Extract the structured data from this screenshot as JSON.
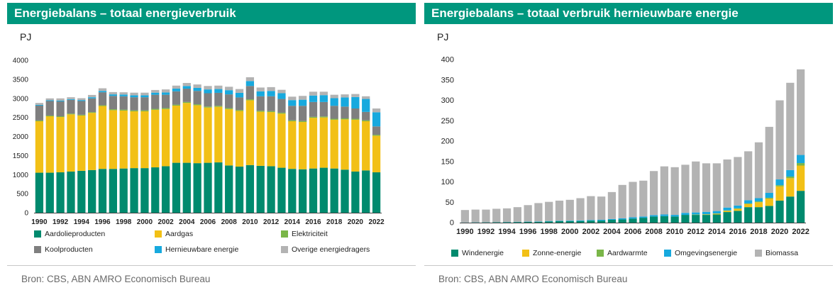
{
  "chart_data": [
    {
      "type": "bar",
      "stacked": true,
      "title": "Energiebalans – totaal energieverbruik",
      "ylabel": "PJ",
      "ylim": [
        0,
        4000
      ],
      "yticks": [
        "0",
        "500",
        "1000",
        "1500",
        "2000",
        "2500",
        "3000",
        "3500",
        "4000"
      ],
      "ytick_values": [
        0,
        500,
        1000,
        1500,
        2000,
        2500,
        3000,
        3500,
        4000
      ],
      "x": [
        1990,
        1991,
        1992,
        1993,
        1994,
        1995,
        1996,
        1997,
        1998,
        1999,
        2000,
        2001,
        2002,
        2003,
        2004,
        2005,
        2006,
        2007,
        2008,
        2009,
        2010,
        2011,
        2012,
        2013,
        2014,
        2015,
        2016,
        2017,
        2018,
        2019,
        2020,
        2021,
        2022
      ],
      "xticks": [
        "1990",
        "1992",
        "1994",
        "1996",
        "1998",
        "2000",
        "2002",
        "2004",
        "2006",
        "2008",
        "2010",
        "2012",
        "2014",
        "2016",
        "2018",
        "2020",
        "2022"
      ],
      "grid": false,
      "legend_position": "bottom",
      "series": [
        {
          "name": "Aardolieproducten",
          "color": "#008a6e",
          "values": [
            1050,
            1050,
            1060,
            1080,
            1100,
            1120,
            1150,
            1150,
            1160,
            1170,
            1170,
            1190,
            1220,
            1310,
            1310,
            1300,
            1310,
            1320,
            1240,
            1210,
            1250,
            1230,
            1220,
            1180,
            1150,
            1140,
            1160,
            1180,
            1160,
            1130,
            1080,
            1110,
            1060
          ]
        },
        {
          "name": "Aardgas",
          "color": "#f2c016",
          "values": [
            1350,
            1480,
            1450,
            1500,
            1450,
            1500,
            1650,
            1540,
            1520,
            1490,
            1490,
            1510,
            1500,
            1500,
            1570,
            1520,
            1450,
            1460,
            1480,
            1460,
            1700,
            1420,
            1420,
            1420,
            1250,
            1240,
            1330,
            1320,
            1280,
            1320,
            1360,
            1290,
            960
          ]
        },
        {
          "name": "Elektriciteit",
          "color": "#7ab648",
          "values": [
            20,
            20,
            20,
            20,
            20,
            20,
            20,
            25,
            25,
            25,
            25,
            25,
            25,
            25,
            25,
            25,
            25,
            25,
            25,
            25,
            25,
            25,
            25,
            25,
            25,
            25,
            25,
            25,
            25,
            25,
            25,
            25,
            25
          ]
        },
        {
          "name": "Koolproducten",
          "color": "#7f7f7f",
          "values": [
            390,
            380,
            390,
            360,
            360,
            360,
            340,
            350,
            350,
            345,
            345,
            370,
            350,
            350,
            350,
            350,
            350,
            340,
            360,
            330,
            350,
            380,
            390,
            360,
            380,
            400,
            390,
            380,
            340,
            310,
            270,
            220,
            220
          ]
        },
        {
          "name": "Hernieuwbare energie",
          "color": "#17a9de",
          "values": [
            20,
            20,
            20,
            20,
            25,
            30,
            35,
            40,
            45,
            50,
            50,
            55,
            60,
            70,
            70,
            80,
            100,
            100,
            110,
            120,
            130,
            130,
            140,
            150,
            150,
            160,
            170,
            180,
            200,
            240,
            300,
            340,
            370
          ]
        },
        {
          "name": "Overige energiedragers",
          "color": "#b3b3b3",
          "values": [
            50,
            50,
            60,
            50,
            50,
            60,
            70,
            60,
            60,
            70,
            70,
            70,
            80,
            80,
            80,
            90,
            90,
            90,
            90,
            100,
            100,
            100,
            100,
            90,
            90,
            100,
            100,
            90,
            90,
            80,
            80,
            70,
            100
          ]
        }
      ]
    },
    {
      "type": "bar",
      "stacked": true,
      "title": "Energiebalans – totaal verbruik hernieuwbare energie",
      "ylabel": "PJ",
      "ylim": [
        0,
        400
      ],
      "yticks": [
        "0",
        "50",
        "100",
        "150",
        "200",
        "250",
        "300",
        "350",
        "400"
      ],
      "ytick_values": [
        0,
        50,
        100,
        150,
        200,
        250,
        300,
        350,
        400
      ],
      "x": [
        1990,
        1991,
        1992,
        1993,
        1994,
        1995,
        1996,
        1997,
        1998,
        1999,
        2000,
        2001,
        2002,
        2003,
        2004,
        2005,
        2006,
        2007,
        2008,
        2009,
        2010,
        2011,
        2012,
        2013,
        2014,
        2015,
        2016,
        2017,
        2018,
        2019,
        2020,
        2021,
        2022
      ],
      "xticks": [
        "1990",
        "1992",
        "1994",
        "1996",
        "1998",
        "2000",
        "2002",
        "2004",
        "2006",
        "2008",
        "2010",
        "2012",
        "2014",
        "2016",
        "2018",
        "2020",
        "2022"
      ],
      "grid": false,
      "legend_position": "bottom",
      "series": [
        {
          "name": "Windenergie",
          "color": "#008a6e",
          "values": [
            0.3,
            0.5,
            0.7,
            1,
            1.2,
            1.5,
            1.8,
            2,
            3,
            3.5,
            3.8,
            4,
            5,
            5,
            7,
            8,
            10,
            12,
            15,
            16,
            15,
            19,
            19,
            19,
            20,
            26,
            29,
            38,
            38,
            41,
            54,
            64,
            78
          ]
        },
        {
          "name": "Zonne-energie",
          "color": "#f2c016",
          "values": [
            0,
            0,
            0,
            0,
            0,
            0,
            0,
            0,
            0,
            0,
            0,
            0,
            0,
            0,
            0,
            0,
            0,
            0,
            0,
            0,
            0,
            0,
            0.5,
            1,
            2,
            3,
            5,
            8,
            12,
            18,
            35,
            45,
            62
          ]
        },
        {
          "name": "Aardwarmte",
          "color": "#7ab648",
          "values": [
            0,
            0,
            0,
            0,
            0,
            0,
            0,
            0,
            0,
            0,
            0,
            0,
            0,
            0,
            0,
            0,
            0,
            0,
            0,
            0,
            0,
            0,
            0.5,
            0.5,
            0.5,
            1,
            1,
            1,
            2,
            2,
            3,
            4,
            6
          ]
        },
        {
          "name": "Omgevingsenergie",
          "color": "#17a9de",
          "values": [
            0.2,
            0.3,
            0.3,
            0.3,
            0.4,
            0.5,
            0.6,
            0.8,
            1,
            1,
            1.2,
            1.5,
            1.5,
            2,
            2,
            2.5,
            3,
            3,
            3.5,
            4,
            4,
            5,
            5,
            6,
            6,
            7,
            7,
            8,
            8,
            12,
            14,
            16,
            20
          ]
        },
        {
          "name": "Biomassa",
          "color": "#b3b3b3",
          "values": [
            30.5,
            31.2,
            31,
            32.7,
            33.4,
            36,
            40.6,
            45.2,
            47,
            49.5,
            51,
            54.5,
            58.5,
            57,
            66,
            82,
            87,
            88,
            108,
            118,
            117,
            118,
            125,
            119,
            117,
            118,
            119,
            120,
            137,
            162,
            194,
            214,
            210
          ]
        }
      ]
    }
  ],
  "panels": [
    {
      "title": "Energiebalans – totaal energieverbruik",
      "unit": "PJ",
      "source": "Bron: CBS, ABN AMRO Economisch Bureau"
    },
    {
      "title": "Energiebalans – totaal verbruik hernieuwbare energie",
      "unit": "PJ",
      "source": "Bron: CBS, ABN AMRO Economisch Bureau"
    }
  ]
}
